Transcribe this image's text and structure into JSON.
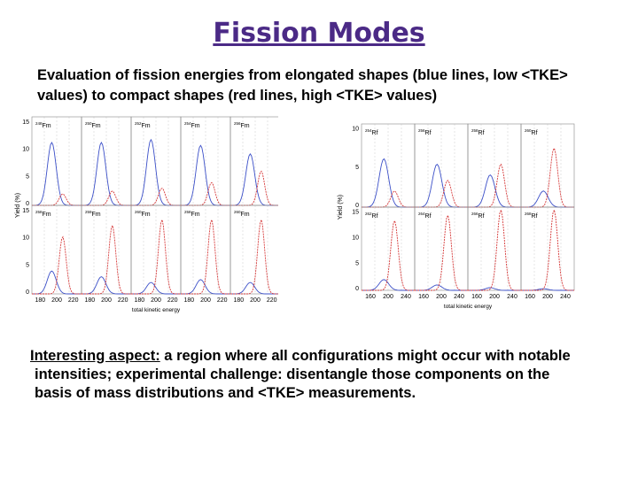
{
  "slide": {
    "title": "Fission Modes",
    "intro_line1": "Evaluation of fission energies from elongated shapes (blue lines, low <TKE>",
    "intro_line2": "values) to compact shapes (red lines, high <TKE> values)",
    "footer_lead": "Interesting aspect:",
    "footer_line1_rest": " a region where all configurations might occur with notable",
    "footer_line2": "intensities; experimental challenge: disentangle those components on the",
    "footer_line3": "basis of mass distributions and <TKE> measurements."
  },
  "colors": {
    "title": "#4b2a86",
    "blue": "#3b4fc8",
    "red": "#d63a3a",
    "grid": "#888888"
  },
  "left_figure": {
    "ylabel": "Yield (%)",
    "xlabel": "total kinetic energy",
    "yticks": [
      "15",
      "10",
      "5",
      "0"
    ],
    "xticks": [
      "180",
      "200",
      "220"
    ],
    "nuclide_labels": [
      [
        "248Fm",
        "250Fm",
        "252Fm",
        "254Fm",
        "256Fm"
      ],
      [
        "258Fm",
        "259Fm",
        "260Fm",
        "258Fm",
        "260Fm"
      ]
    ],
    "panels": [
      [
        {
          "b": 11,
          "r": 2,
          "bpos": 0.4,
          "rpos": 0.62
        },
        {
          "b": 11,
          "r": 2.5,
          "bpos": 0.4,
          "rpos": 0.62
        },
        {
          "b": 11.5,
          "r": 3,
          "bpos": 0.4,
          "rpos": 0.62
        },
        {
          "b": 10.5,
          "r": 4,
          "bpos": 0.4,
          "rpos": 0.62
        },
        {
          "b": 9,
          "r": 6,
          "bpos": 0.4,
          "rpos": 0.62
        }
      ],
      [
        {
          "b": 4,
          "r": 10,
          "bpos": 0.4,
          "rpos": 0.62
        },
        {
          "b": 3,
          "r": 12,
          "bpos": 0.4,
          "rpos": 0.62
        },
        {
          "b": 2,
          "r": 13,
          "bpos": 0.4,
          "rpos": 0.62
        },
        {
          "b": 2.5,
          "r": 13,
          "bpos": 0.4,
          "rpos": 0.62
        },
        {
          "b": 2,
          "r": 13,
          "bpos": 0.4,
          "rpos": 0.62
        }
      ]
    ]
  },
  "right_figure": {
    "ylabel": "Yield (%)",
    "xlabel": "total kinetic energy",
    "yticks_top": [
      "10",
      "5",
      "0"
    ],
    "yticks_bottom": [
      "15",
      "10",
      "5",
      "0"
    ],
    "xticks": [
      "160",
      "200",
      "240"
    ],
    "nuclide_labels": [
      [
        "254Rf",
        "256Rf",
        "258Rf",
        "260Rf"
      ],
      [
        "262Rf",
        "264Rf",
        "266Rf",
        "268Rf"
      ]
    ],
    "panels": [
      [
        {
          "b": 9,
          "r": 3,
          "bpos": 0.42,
          "rpos": 0.62
        },
        {
          "b": 8,
          "r": 5,
          "bpos": 0.42,
          "rpos": 0.62
        },
        {
          "b": 6,
          "r": 8,
          "bpos": 0.42,
          "rpos": 0.62
        },
        {
          "b": 3,
          "r": 11,
          "bpos": 0.42,
          "rpos": 0.62
        }
      ],
      [
        {
          "b": 2,
          "r": 13,
          "bpos": 0.42,
          "rpos": 0.62
        },
        {
          "b": 1,
          "r": 14,
          "bpos": 0.42,
          "rpos": 0.62
        },
        {
          "b": 0.5,
          "r": 15,
          "bpos": 0.42,
          "rpos": 0.62
        },
        {
          "b": 0.3,
          "r": 15,
          "bpos": 0.42,
          "rpos": 0.62
        }
      ]
    ]
  }
}
